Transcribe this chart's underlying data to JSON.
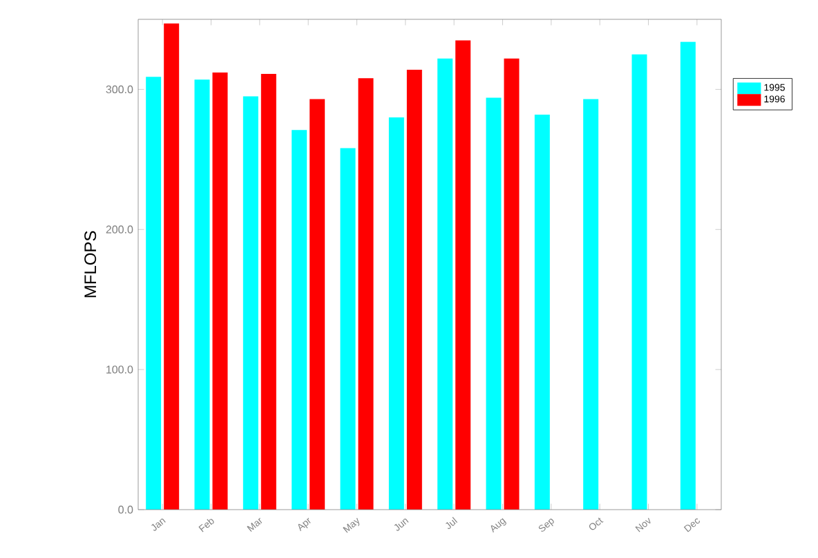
{
  "chart_data": {
    "type": "bar",
    "ylabel": "MFLOPS",
    "categories": [
      "Jan",
      "Feb",
      "Mar",
      "Apr",
      "May",
      "Jun",
      "Jul",
      "Aug",
      "Sep",
      "Oct",
      "Nov",
      "Dec"
    ],
    "series": [
      {
        "name": "1995",
        "color": "#00ffff",
        "values": [
          309,
          307,
          295,
          271,
          258,
          280,
          322,
          294,
          282,
          293,
          325,
          334
        ]
      },
      {
        "name": "1996",
        "color": "#ff0000",
        "values": [
          347,
          312,
          311,
          293,
          308,
          314,
          335,
          322,
          0,
          0,
          0,
          0
        ]
      }
    ],
    "ylim": [
      0,
      350
    ],
    "yticks": [
      {
        "value": 0,
        "label": "0.0"
      },
      {
        "value": 100,
        "label": "100.0"
      },
      {
        "value": 200,
        "label": "200.0"
      },
      {
        "value": 300,
        "label": "300.0"
      }
    ],
    "legend": "top right",
    "grid": false
  }
}
